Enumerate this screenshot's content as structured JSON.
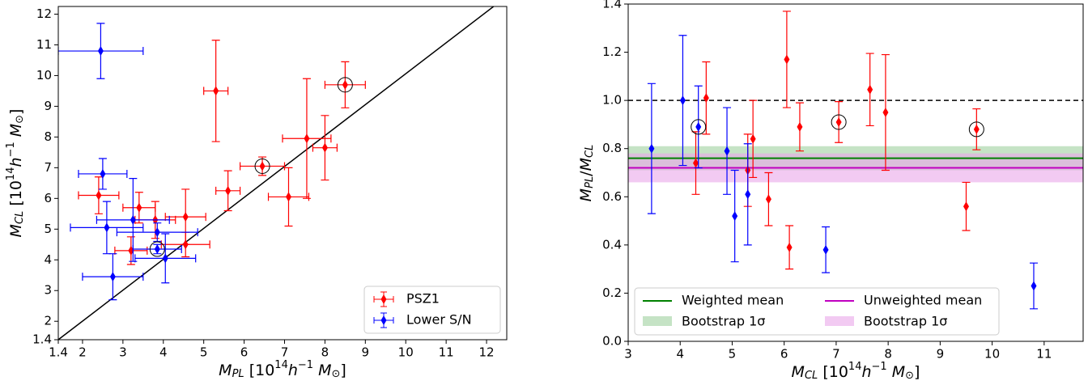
{
  "chart_data": [
    {
      "type": "scatter",
      "x_label": [
        "M",
        "PL",
        " [10",
        "14",
        "h",
        "−1",
        " M",
        "⊙",
        "]"
      ],
      "y_label": [
        "M",
        "CL",
        " [10",
        "14",
        "h",
        "−1",
        " M",
        "⊙",
        "]"
      ],
      "xlim": [
        1.4,
        12.5
      ],
      "ylim": [
        1.4,
        12.25
      ],
      "xticks": [
        1.4,
        2,
        3,
        4,
        5,
        6,
        7,
        8,
        9,
        10,
        11,
        12
      ],
      "yticks": [
        1.4,
        2,
        3,
        4,
        5,
        6,
        7,
        8,
        9,
        10,
        11,
        12
      ],
      "identity_line": true,
      "legend": "lower right",
      "series": [
        {
          "name": "PSZ1",
          "color": "#ff0000",
          "x": [
            2.4,
            3.2,
            3.4,
            3.8,
            4.55,
            4.55,
            5.3,
            5.6,
            6.45,
            7.1,
            7.55,
            8.0,
            8.5
          ],
          "values": [
            6.1,
            4.3,
            5.7,
            5.3,
            5.4,
            4.5,
            9.5,
            6.25,
            7.05,
            6.05,
            7.95,
            7.65,
            9.7
          ],
          "xerr": [
            0.5,
            0.4,
            0.4,
            0.5,
            0.5,
            0.6,
            0.3,
            0.3,
            0.55,
            0.5,
            0.6,
            0.3,
            0.5
          ],
          "yerr": [
            0.6,
            0.45,
            0.5,
            0.6,
            0.9,
            0.4,
            1.65,
            0.65,
            0.3,
            0.95,
            1.95,
            1.05,
            0.75
          ],
          "highlight": [
            false,
            false,
            false,
            false,
            false,
            false,
            false,
            false,
            true,
            false,
            false,
            false,
            true
          ]
        },
        {
          "name": "Lower S/N",
          "color": "#0000ff",
          "x": [
            2.45,
            2.5,
            2.6,
            2.75,
            3.25,
            3.85,
            3.85,
            4.05
          ],
          "values": [
            10.8,
            6.8,
            5.05,
            3.45,
            5.3,
            4.9,
            4.35,
            4.05
          ],
          "xerr": [
            1.05,
            0.6,
            0.9,
            0.75,
            0.9,
            1.0,
            0.6,
            0.75
          ],
          "yerr": [
            0.9,
            0.5,
            0.85,
            0.75,
            1.35,
            0.3,
            0.15,
            0.8
          ],
          "highlight": [
            false,
            false,
            false,
            false,
            false,
            false,
            true,
            false
          ]
        }
      ]
    },
    {
      "type": "scatter",
      "x_label": [
        "M",
        "CL",
        " [10",
        "14",
        "h",
        "−1",
        " M",
        "⊙",
        "]"
      ],
      "y_label": [
        "M",
        "PL",
        "/",
        "M",
        "CL"
      ],
      "xlim": [
        3,
        11.75
      ],
      "ylim": [
        0,
        1.4
      ],
      "xticks": [
        3,
        4,
        5,
        6,
        7,
        8,
        9,
        10,
        11
      ],
      "yticks": [
        {
          "value": 0,
          "label": "0.0"
        },
        0.2,
        0.4,
        0.6,
        0.8,
        {
          "value": 1,
          "label": "1.0"
        },
        1.2,
        1.4
      ],
      "ref_line": 1,
      "legend": "lower left",
      "bands": [
        {
          "name": "Weighted mean",
          "band_label": "Bootstrap 1σ",
          "color": "#008000",
          "band_color": "#9fd19f",
          "value": 0.76,
          "low": 0.71,
          "high": 0.81
        },
        {
          "name": "Unweighted mean",
          "band_label": "Bootstrap 1σ",
          "color": "#c000c0",
          "band_color": "#e9a6e9",
          "value": 0.72,
          "low": 0.66,
          "high": 0.78
        }
      ],
      "series": [
        {
          "name": "PSZ1",
          "color": "#ff0000",
          "x": [
            4.3,
            4.5,
            5.3,
            5.4,
            5.7,
            6.05,
            6.1,
            6.3,
            7.05,
            7.65,
            7.95,
            9.5,
            9.7
          ],
          "values": [
            0.74,
            1.01,
            0.71,
            0.84,
            0.59,
            1.17,
            0.39,
            0.89,
            0.91,
            1.045,
            0.95,
            0.56,
            0.88
          ],
          "yerr": [
            0.13,
            0.15,
            0.15,
            0.16,
            0.11,
            0.2,
            0.09,
            0.1,
            0.085,
            0.15,
            0.24,
            0.1,
            0.085
          ],
          "highlight": [
            false,
            false,
            false,
            false,
            false,
            false,
            false,
            false,
            true,
            false,
            false,
            false,
            true
          ]
        },
        {
          "name": "Lower S/N",
          "color": "#0000ff",
          "x": [
            3.45,
            4.05,
            4.35,
            4.9,
            5.05,
            5.3,
            6.8,
            10.8
          ],
          "values": [
            0.8,
            1.0,
            0.89,
            0.79,
            0.52,
            0.61,
            0.38,
            0.23
          ],
          "yerr": [
            0.27,
            0.27,
            0.17,
            0.18,
            0.19,
            0.21,
            0.095,
            0.095
          ],
          "highlight": [
            false,
            false,
            true,
            false,
            false,
            false,
            false,
            false
          ]
        }
      ]
    }
  ]
}
